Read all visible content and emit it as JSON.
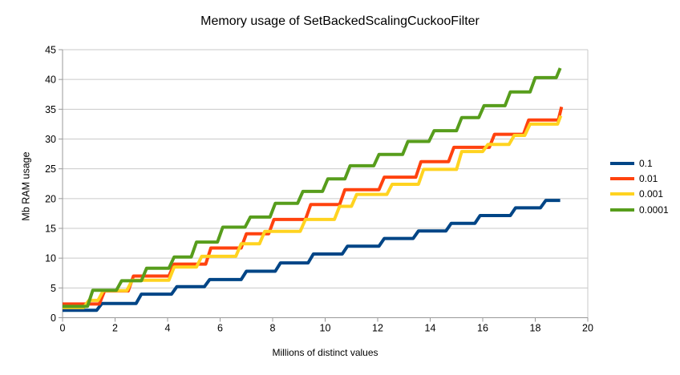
{
  "chart_data": {
    "type": "line",
    "step_style": true,
    "title": "Memory usage of SetBackedScalingCuckooFilter",
    "xlabel": "Millions of distinct values",
    "ylabel": "Mb RAM usage",
    "xlim": [
      0,
      20
    ],
    "ylim": [
      0,
      45
    ],
    "x_ticks": [
      0,
      2,
      4,
      6,
      8,
      10,
      12,
      14,
      16,
      18,
      20
    ],
    "y_ticks": [
      0,
      5,
      10,
      15,
      20,
      25,
      30,
      35,
      40,
      45
    ],
    "grid": "horizontal-only",
    "legend_position": "right",
    "series": [
      {
        "name": "0.1",
        "color": "#004586",
        "end_x": 18.95,
        "steps": [
          [
            0,
            1.25
          ],
          [
            1.3,
            2.4
          ],
          [
            2.8,
            3.95
          ],
          [
            4.15,
            5.2
          ],
          [
            5.4,
            6.4
          ],
          [
            6.8,
            7.8
          ],
          [
            8.1,
            9.2
          ],
          [
            9.35,
            10.7
          ],
          [
            10.65,
            12.0
          ],
          [
            12.05,
            13.3
          ],
          [
            13.35,
            14.55
          ],
          [
            14.6,
            15.85
          ],
          [
            15.7,
            17.15
          ],
          [
            17.05,
            18.45
          ],
          [
            18.2,
            19.7
          ]
        ]
      },
      {
        "name": "0.01",
        "color": "#FF420E",
        "end_x": 19.0,
        "steps": [
          [
            0,
            2.3
          ],
          [
            1.4,
            4.5
          ],
          [
            2.5,
            7.0
          ],
          [
            4.05,
            9.0
          ],
          [
            5.45,
            11.7
          ],
          [
            6.8,
            14.1
          ],
          [
            7.85,
            16.5
          ],
          [
            9.25,
            19.0
          ],
          [
            10.55,
            21.5
          ],
          [
            12.05,
            23.6
          ],
          [
            13.45,
            26.2
          ],
          [
            14.7,
            28.6
          ],
          [
            16.25,
            30.8
          ],
          [
            17.55,
            33.2
          ],
          [
            18.88,
            35.4
          ]
        ]
      },
      {
        "name": "0.001",
        "color": "#FFD320",
        "end_x": 18.97,
        "steps": [
          [
            0,
            1.7
          ],
          [
            0.8,
            2.9
          ],
          [
            1.35,
            4.55
          ],
          [
            2.45,
            6.3
          ],
          [
            4.05,
            8.5
          ],
          [
            5.1,
            10.3
          ],
          [
            6.6,
            12.4
          ],
          [
            7.5,
            14.5
          ],
          [
            9.05,
            16.5
          ],
          [
            10.35,
            18.7
          ],
          [
            11.0,
            20.7
          ],
          [
            12.35,
            22.4
          ],
          [
            13.55,
            24.9
          ],
          [
            15.0,
            27.9
          ],
          [
            16.0,
            29.1
          ],
          [
            17.0,
            30.6
          ],
          [
            17.6,
            32.5
          ],
          [
            18.85,
            33.9
          ]
        ]
      },
      {
        "name": "0.0001",
        "color": "#579D1C",
        "end_x": 18.95,
        "steps": [
          [
            0,
            1.9
          ],
          [
            0.95,
            4.6
          ],
          [
            2.05,
            6.2
          ],
          [
            3.0,
            8.3
          ],
          [
            4.05,
            10.2
          ],
          [
            4.9,
            12.7
          ],
          [
            5.9,
            15.2
          ],
          [
            6.95,
            16.9
          ],
          [
            7.9,
            19.2
          ],
          [
            8.95,
            21.2
          ],
          [
            9.9,
            23.3
          ],
          [
            10.75,
            25.5
          ],
          [
            11.85,
            27.4
          ],
          [
            12.95,
            29.6
          ],
          [
            13.95,
            31.4
          ],
          [
            15.0,
            33.6
          ],
          [
            15.85,
            35.6
          ],
          [
            16.85,
            37.9
          ],
          [
            17.8,
            40.3
          ],
          [
            18.8,
            41.9
          ]
        ]
      }
    ],
    "layout_colors": {
      "gridline": "#c9c9c9",
      "axis": "#999999",
      "text": "#000000",
      "background": "#ffffff"
    }
  }
}
